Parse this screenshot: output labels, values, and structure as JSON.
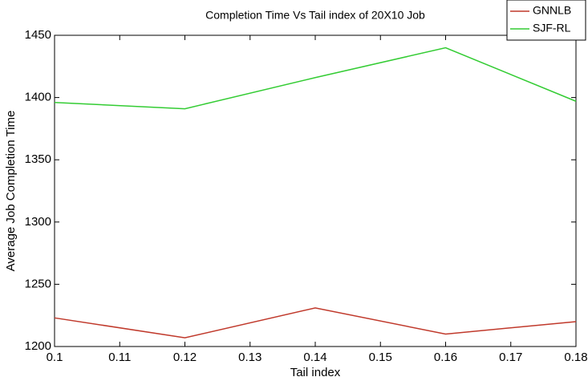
{
  "chart_data": {
    "type": "line",
    "title": "Completion Time Vs Tail index of 20X10 Job",
    "x_label": "Tail index",
    "y_label": "Average Job Completion Time",
    "x": [
      0.1,
      0.12,
      0.14,
      0.16,
      0.18
    ],
    "series": [
      {
        "name": "GNNLB",
        "color": "#c0392b",
        "values": [
          1223,
          1207,
          1231,
          1210,
          1220
        ]
      },
      {
        "name": "SJF-RL",
        "color": "#33cc33",
        "values": [
          1396,
          1391,
          1416,
          1440,
          1397
        ]
      }
    ],
    "xlim": [
      0.1,
      0.18
    ],
    "xticks": [
      0.1,
      0.11,
      0.12,
      0.13,
      0.14,
      0.15,
      0.16,
      0.17,
      0.18
    ],
    "ylim": [
      1200,
      1450
    ],
    "yticks": [
      1200,
      1250,
      1300,
      1350,
      1400,
      1450
    ],
    "grid": false,
    "legend": "top-right"
  }
}
